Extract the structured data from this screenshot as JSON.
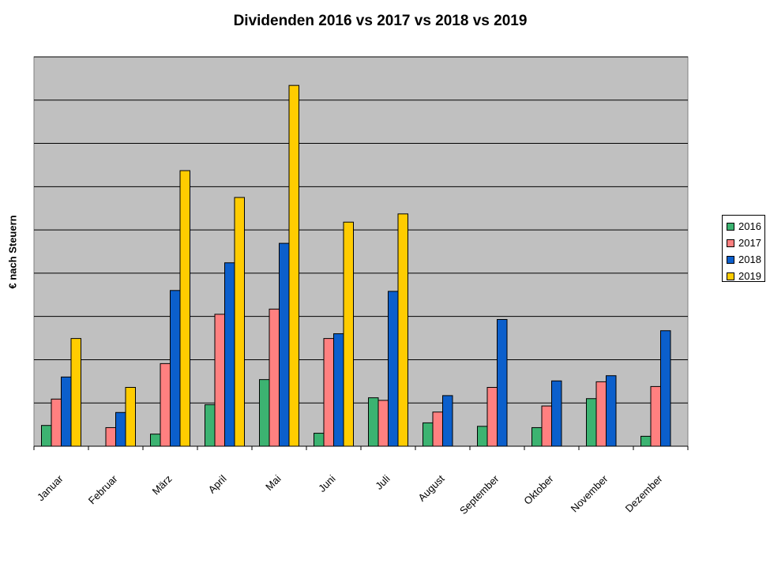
{
  "chart_data": {
    "type": "bar",
    "title": "Dividenden 2016 vs 2017 vs 2018 vs 2019",
    "xlabel": "",
    "ylabel": "€ nach Steuern",
    "categories": [
      "Januar",
      "Februar",
      "März",
      "April",
      "Mai",
      "Juni",
      "Juli",
      "August",
      "September",
      "Oktober",
      "November",
      "Dezember"
    ],
    "ylim": [
      0,
      9
    ],
    "grid": true,
    "legend_position": "right",
    "series": [
      {
        "name": "2016",
        "color": "#3CB371",
        "values": [
          0.48,
          null,
          0.28,
          0.96,
          1.54,
          0.3,
          1.12,
          0.54,
          0.46,
          0.43,
          1.1,
          0.23
        ]
      },
      {
        "name": "2017",
        "color": "#FF8080",
        "values": [
          1.09,
          0.43,
          1.91,
          3.05,
          3.17,
          2.49,
          1.06,
          0.79,
          1.36,
          0.93,
          1.49,
          1.38
        ]
      },
      {
        "name": "2018",
        "color": "#0B5FCC",
        "values": [
          1.6,
          0.78,
          3.6,
          4.24,
          4.69,
          2.6,
          3.58,
          1.17,
          2.93,
          1.51,
          1.63,
          2.67
        ]
      },
      {
        "name": "2019",
        "color": "#FFCC00",
        "values": [
          2.49,
          1.36,
          6.37,
          5.75,
          8.34,
          5.18,
          5.37,
          null,
          null,
          null,
          null,
          null
        ]
      }
    ]
  }
}
